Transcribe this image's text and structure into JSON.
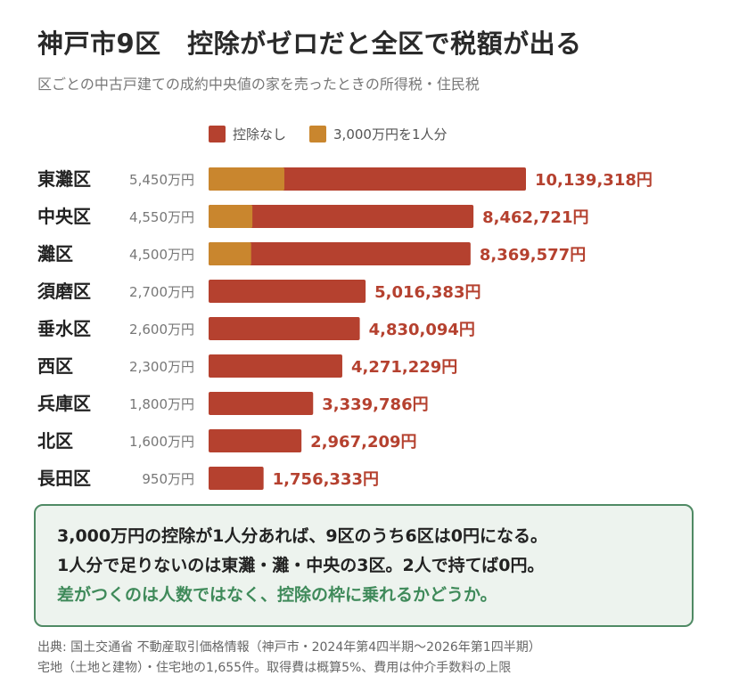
{
  "title": "神戸市9区　控除がゼロだと全区で税額が出る",
  "subtitle": "区ごとの中古戸建ての成約中央値の家を売ったときの所得税・住民税",
  "colors": {
    "no_deduction": "#b5412f",
    "one_person": "#c9862e",
    "note_border": "#4f8a64",
    "note_bg": "#edf3ee",
    "accent_text": "#3f8a5a"
  },
  "chart_data": {
    "type": "bar",
    "orientation": "horizontal",
    "legend_placement": "top",
    "grid": false,
    "categories": [
      "東灘区",
      "中央区",
      "灘区",
      "須磨区",
      "垂水区",
      "西区",
      "兵庫区",
      "北区",
      "長田区"
    ],
    "prices": [
      "5,450万円",
      "4,550万円",
      "4,500万円",
      "2,700万円",
      "2,600万円",
      "2,300万円",
      "1,800万円",
      "1,600万円",
      "950万円"
    ],
    "series": [
      {
        "name": "控除なし",
        "color": "#b5412f",
        "values": [
          10139318,
          8462721,
          8369577,
          5016383,
          4830094,
          4271229,
          3339786,
          2967209,
          1756333
        ]
      },
      {
        "name": "3,000万円を1人分",
        "color": "#c9862e",
        "values": [
          2420000,
          1400000,
          1360000,
          0,
          0,
          0,
          0,
          0,
          0
        ]
      }
    ],
    "value_labels": [
      "10,139,318円",
      "8,462,721円",
      "8,369,577円",
      "5,016,383円",
      "4,830,094円",
      "4,271,229円",
      "3,339,786円",
      "2,967,209円",
      "1,756,333円"
    ],
    "xlim": [
      0,
      10139318
    ]
  },
  "note": {
    "line1": "3,000万円の控除が1人分あれば、9区のうち6区は0円になる。",
    "line2": "1人分で足りないのは東灘・灘・中央の3区。2人で持てば0円。",
    "line3": "差がつくのは人数ではなく、控除の枠に乗れるかどうか。"
  },
  "source": {
    "line1": "出典: 国土交通省 不動産取引価格情報（神戸市・2024年第4四半期〜2026年第1四半期）",
    "line2": "宅地（土地と建物）・住宅地の1,655件。取得費は概算5%、費用は仲介手数料の上限"
  }
}
